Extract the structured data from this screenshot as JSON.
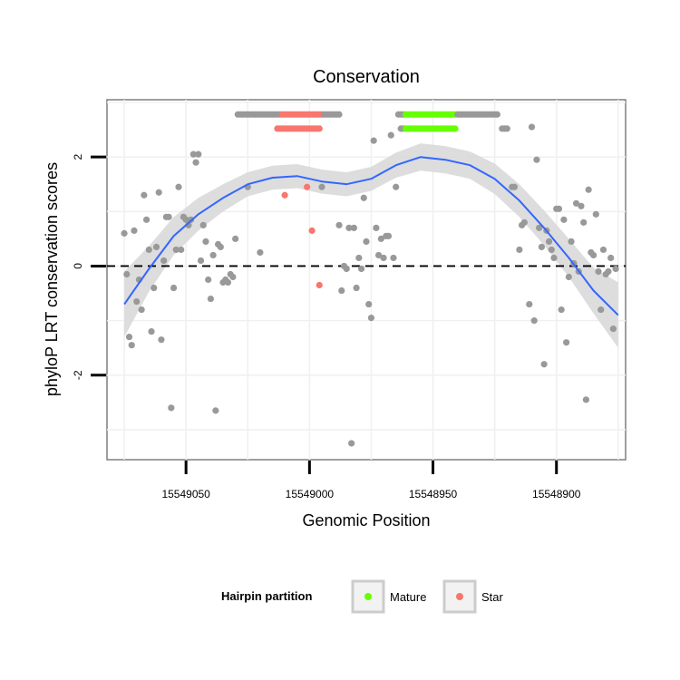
{
  "chart_data": {
    "type": "scatter",
    "title": "Conservation",
    "xlabel": "Genomic Position",
    "ylabel": "phyloP LRT conservation scores",
    "xlim": [
      15549082,
      15548872
    ],
    "ylim": [
      -3.55,
      3.05
    ],
    "x_reversed": true,
    "x_ticks": [
      15549050,
      15549000,
      15548950,
      15548900
    ],
    "x_tick_labels": [
      "15549050",
      "15549000",
      "15548950",
      "15548900"
    ],
    "y_ticks": [
      -2,
      0,
      2
    ],
    "y_tick_labels": [
      "-2",
      "0",
      "2"
    ],
    "y_gridlines": [
      -3,
      -2,
      -1,
      0,
      1,
      2,
      3
    ],
    "reference_line": {
      "y": 0,
      "style": "dashed",
      "color": "#000000"
    },
    "series": [
      {
        "name": "Other",
        "color": "#999999",
        "points": [
          [
            15549075,
            0.6
          ],
          [
            15549074,
            -0.15
          ],
          [
            15549073,
            -1.3
          ],
          [
            15549072,
            -1.45
          ],
          [
            15549071,
            0.65
          ],
          [
            15549070,
            -0.65
          ],
          [
            15549069,
            -0.25
          ],
          [
            15549068,
            -0.8
          ],
          [
            15549067,
            1.3
          ],
          [
            15549066,
            0.85
          ],
          [
            15549065,
            0.3
          ],
          [
            15549064,
            -1.2
          ],
          [
            15549063,
            -0.4
          ],
          [
            15549062,
            0.35
          ],
          [
            15549061,
            1.35
          ],
          [
            15549060,
            -1.35
          ],
          [
            15549059,
            0.1
          ],
          [
            15549058,
            0.9
          ],
          [
            15549057,
            0.9
          ],
          [
            15549056,
            -2.6
          ],
          [
            15549055,
            -0.4
          ],
          [
            15549054,
            0.3
          ],
          [
            15549053,
            1.45
          ],
          [
            15549052,
            0.3
          ],
          [
            15549051,
            0.9
          ],
          [
            15549050,
            0.85
          ],
          [
            15549049,
            0.75
          ],
          [
            15549048,
            0.85
          ],
          [
            15549047,
            2.05
          ],
          [
            15549046,
            1.9
          ],
          [
            15549045,
            2.05
          ],
          [
            15549044,
            0.1
          ],
          [
            15549043,
            0.75
          ],
          [
            15549042,
            0.45
          ],
          [
            15549041,
            -0.25
          ],
          [
            15549040,
            -0.6
          ],
          [
            15549039,
            0.2
          ],
          [
            15549038,
            -2.65
          ],
          [
            15549037,
            0.4
          ],
          [
            15549036,
            0.35
          ],
          [
            15549035,
            -0.3
          ],
          [
            15549034,
            -0.25
          ],
          [
            15549033,
            -0.3
          ],
          [
            15549032,
            -0.15
          ],
          [
            15549031,
            -0.2
          ],
          [
            15549030,
            0.5
          ],
          [
            15549025,
            1.45
          ],
          [
            15549020,
            0.25
          ],
          [
            15548995,
            1.45
          ],
          [
            15548988,
            0.75
          ],
          [
            15548987,
            -0.45
          ],
          [
            15548986,
            0.0
          ],
          [
            15548985,
            -0.05
          ],
          [
            15548984,
            0.7
          ],
          [
            15548983,
            -3.25
          ],
          [
            15548982,
            0.7
          ],
          [
            15548981,
            -0.4
          ],
          [
            15548980,
            0.15
          ],
          [
            15548979,
            -0.05
          ],
          [
            15548978,
            1.25
          ],
          [
            15548977,
            0.45
          ],
          [
            15548976,
            -0.7
          ],
          [
            15548975,
            -0.95
          ],
          [
            15548974,
            2.3
          ],
          [
            15548973,
            0.7
          ],
          [
            15548972,
            0.2
          ],
          [
            15548971,
            0.5
          ],
          [
            15548970,
            0.15
          ],
          [
            15548969,
            0.55
          ],
          [
            15548968,
            0.55
          ],
          [
            15548967,
            2.4
          ],
          [
            15548966,
            0.15
          ],
          [
            15548965,
            1.45
          ],
          [
            15548918,
            1.45
          ],
          [
            15548917,
            1.45
          ],
          [
            15548915,
            0.3
          ],
          [
            15548914,
            0.75
          ],
          [
            15548913,
            0.8
          ],
          [
            15548911,
            -0.7
          ],
          [
            15548910,
            2.55
          ],
          [
            15548909,
            -1.0
          ],
          [
            15548908,
            1.95
          ],
          [
            15548907,
            0.7
          ],
          [
            15548906,
            0.35
          ],
          [
            15548905,
            -1.8
          ],
          [
            15548904,
            0.65
          ],
          [
            15548903,
            0.45
          ],
          [
            15548902,
            0.3
          ],
          [
            15548901,
            0.15
          ],
          [
            15548900,
            1.05
          ],
          [
            15548899,
            1.05
          ],
          [
            15548898,
            -0.8
          ],
          [
            15548897,
            0.85
          ],
          [
            15548896,
            -1.4
          ],
          [
            15548895,
            -0.2
          ],
          [
            15548894,
            0.45
          ],
          [
            15548893,
            0.05
          ],
          [
            15548892,
            1.15
          ],
          [
            15548891,
            -0.1
          ],
          [
            15548890,
            1.1
          ],
          [
            15548889,
            0.8
          ],
          [
            15548888,
            -2.45
          ],
          [
            15548887,
            1.4
          ],
          [
            15548886,
            0.25
          ],
          [
            15548885,
            0.2
          ],
          [
            15548884,
            0.95
          ],
          [
            15548883,
            -0.1
          ],
          [
            15548882,
            -0.8
          ],
          [
            15548881,
            0.3
          ],
          [
            15548880,
            -0.15
          ],
          [
            15548879,
            -0.1
          ],
          [
            15548878,
            0.15
          ],
          [
            15548877,
            -1.15
          ],
          [
            15548876,
            -0.05
          ]
        ]
      },
      {
        "name": "Star",
        "color": "#F8766D",
        "points": [
          [
            15549010,
            1.3
          ],
          [
            15549001,
            1.45
          ],
          [
            15548999,
            0.65
          ],
          [
            15548996,
            -0.35
          ]
        ]
      },
      {
        "name": "Mature",
        "color": "#66FF00",
        "points": []
      }
    ],
    "annotation_rows": [
      {
        "y": 2.78,
        "segments": [
          {
            "from": 15549029,
            "to": 15549012,
            "series": "Other"
          },
          {
            "from": 15549011,
            "to": 15548995,
            "series": "Star"
          },
          {
            "from": 15548994,
            "to": 15548988,
            "series": "Other"
          },
          {
            "from": 15548964,
            "to": 15548962,
            "series": "Other"
          },
          {
            "from": 15548961,
            "to": 15548941,
            "series": "Mature"
          },
          {
            "from": 15548940,
            "to": 15548924,
            "series": "Other"
          }
        ]
      },
      {
        "y": 2.52,
        "segments": [
          {
            "from": 15549013,
            "to": 15548996,
            "series": "Star"
          },
          {
            "from": 15548963,
            "to": 15548962,
            "series": "Other"
          },
          {
            "from": 15548961,
            "to": 15548941,
            "series": "Mature"
          },
          {
            "from": 15548922,
            "to": 15548920,
            "series": "Other"
          }
        ]
      }
    ],
    "smooth_curve": {
      "color": "#3366FF",
      "band_color": "#D9D9D9",
      "points": [
        [
          15549075,
          -0.7,
          0.6
        ],
        [
          15549065,
          -0.05,
          0.42
        ],
        [
          15549055,
          0.55,
          0.35
        ],
        [
          15549045,
          0.95,
          0.3
        ],
        [
          15549035,
          1.25,
          0.25
        ],
        [
          15549025,
          1.5,
          0.22
        ],
        [
          15549015,
          1.62,
          0.22
        ],
        [
          15549005,
          1.65,
          0.22
        ],
        [
          15548995,
          1.55,
          0.22
        ],
        [
          15548985,
          1.5,
          0.22
        ],
        [
          15548975,
          1.6,
          0.22
        ],
        [
          15548965,
          1.85,
          0.23
        ],
        [
          15548955,
          2.0,
          0.25
        ],
        [
          15548945,
          1.95,
          0.25
        ],
        [
          15548935,
          1.85,
          0.25
        ],
        [
          15548925,
          1.6,
          0.28
        ],
        [
          15548915,
          1.2,
          0.3
        ],
        [
          15548905,
          0.7,
          0.32
        ],
        [
          15548895,
          0.15,
          0.35
        ],
        [
          15548885,
          -0.45,
          0.42
        ],
        [
          15548875,
          -0.9,
          0.6
        ]
      ]
    },
    "legend": {
      "title": "Hairpin partition",
      "position": "bottom",
      "entries": [
        {
          "label": "Mature",
          "color": "#66FF00"
        },
        {
          "label": "Star",
          "color": "#F8766D"
        }
      ]
    }
  }
}
